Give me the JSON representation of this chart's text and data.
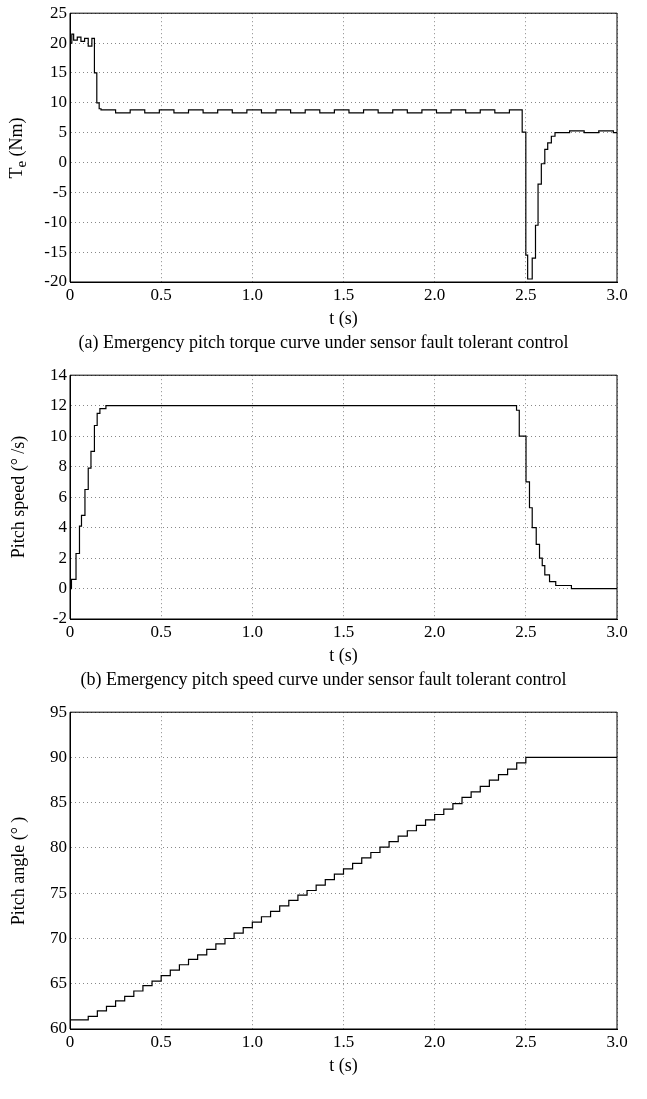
{
  "chart_data": [
    {
      "type": "step",
      "xlabel": "t (s)",
      "ylabel": "T$_{e}$ (Nm)",
      "annotations": [
        "(a)  Emergency pitch torque curve under sensor fault tolerant control"
      ],
      "x": [
        0,
        0.01,
        0.02,
        0.04,
        0.06,
        0.08,
        0.1,
        0.12,
        0.134,
        0.147,
        0.16,
        0.17,
        0.25,
        0.33,
        0.41,
        0.49,
        0.57,
        0.65,
        0.73,
        0.81,
        0.89,
        0.97,
        1.05,
        1.13,
        1.21,
        1.29,
        1.37,
        1.45,
        1.53,
        1.61,
        1.69,
        1.77,
        1.85,
        1.93,
        2.01,
        2.09,
        2.17,
        2.25,
        2.33,
        2.41,
        2.48,
        2.5,
        2.51,
        2.535,
        2.553,
        2.567,
        2.585,
        2.604,
        2.62,
        2.64,
        2.66,
        2.74,
        2.82,
        2.9,
        2.98,
        3.0
      ],
      "series": [
        {
          "color": "#000000",
          "values": [
            20,
            21.5,
            20.5,
            21,
            20.3,
            20.8,
            19.5,
            20.8,
            15,
            10,
            9,
            8.8,
            8.3,
            8.8,
            8.3,
            8.8,
            8.3,
            8.8,
            8.3,
            8.8,
            8.3,
            8.8,
            8.3,
            8.8,
            8.3,
            8.8,
            8.3,
            8.8,
            8.3,
            8.8,
            8.3,
            8.8,
            8.3,
            8.8,
            8.3,
            8.8,
            8.3,
            8.8,
            8.3,
            8.8,
            5.1,
            -15.5,
            -19.5,
            -16,
            -10.5,
            -3.6,
            -0.2,
            2.2,
            3.3,
            4.4,
            5,
            5.3,
            5,
            5.3,
            5,
            5
          ]
        }
      ],
      "xlim": [
        0,
        3
      ],
      "ylim": [
        -20,
        25
      ],
      "xticks": [
        0,
        0.5,
        {
          "value": 1,
          "label": "1.0"
        },
        1.5,
        {
          "value": 2,
          "label": "2.0"
        },
        2.5,
        {
          "value": 3,
          "label": "3.0"
        }
      ],
      "yticks": [
        -20,
        -15,
        -10,
        -5,
        0,
        5,
        10,
        15,
        20,
        25
      ],
      "grid": true,
      "legend": false,
      "marker": "none"
    },
    {
      "type": "step",
      "xlabel": "t (s)",
      "ylabel": "Pitch speed (° /s)",
      "annotations": [
        "(b)  Emergency pitch speed curve under sensor fault tolerant control"
      ],
      "x": [
        0,
        0.008,
        0.033,
        0.052,
        0.063,
        0.082,
        0.1,
        0.115,
        0.134,
        0.149,
        0.164,
        0.197,
        2.449,
        2.464,
        2.501,
        2.52,
        2.535,
        2.557,
        2.575,
        2.59,
        2.604,
        2.63,
        2.664,
        2.75,
        3.0
      ],
      "series": [
        {
          "color": "#000000",
          "values": [
            0,
            0.6,
            2.3,
            4.1,
            4.8,
            6.5,
            7.9,
            9.0,
            10.7,
            11.5,
            11.8,
            12,
            11.7,
            10,
            7,
            5.3,
            4,
            2.9,
            2,
            1.5,
            0.9,
            0.45,
            0.2,
            0,
            0
          ]
        }
      ],
      "xlim": [
        0,
        3
      ],
      "ylim": [
        -2,
        14
      ],
      "xticks": [
        0,
        0.5,
        {
          "value": 1,
          "label": "1.0"
        },
        1.5,
        {
          "value": 2,
          "label": "2.0"
        },
        2.5,
        {
          "value": 3,
          "label": "3.0"
        }
      ],
      "yticks": [
        -2,
        0,
        2,
        4,
        6,
        8,
        10,
        12,
        14
      ],
      "grid": true,
      "legend": false,
      "marker": "none"
    },
    {
      "type": "step",
      "xlabel": "t (s)",
      "ylabel": "Pitch angle (° )",
      "x": [
        0,
        0.1,
        0.15,
        0.2,
        0.25,
        0.3,
        0.35,
        0.4,
        0.45,
        0.5,
        0.55,
        0.6,
        0.65,
        0.7,
        0.75,
        0.8,
        0.85,
        0.9,
        0.95,
        1.0,
        1.05,
        1.1,
        1.15,
        1.2,
        1.25,
        1.3,
        1.35,
        1.4,
        1.45,
        1.5,
        1.55,
        1.6,
        1.65,
        1.7,
        1.75,
        1.8,
        1.85,
        1.9,
        1.95,
        2.0,
        2.05,
        2.1,
        2.15,
        2.2,
        2.25,
        2.3,
        2.35,
        2.4,
        2.45,
        2.5,
        3.0
      ],
      "series": [
        {
          "color": "#000000",
          "values": [
            61.0,
            61.4,
            62.0,
            62.5,
            63.1,
            63.6,
            64.2,
            64.8,
            65.3,
            65.9,
            66.5,
            67.1,
            67.7,
            68.2,
            68.8,
            69.4,
            70.0,
            70.6,
            71.2,
            71.8,
            72.4,
            73.0,
            73.6,
            74.2,
            74.8,
            75.3,
            75.9,
            76.5,
            77.1,
            77.7,
            78.3,
            78.9,
            79.5,
            80.1,
            80.7,
            81.3,
            81.9,
            82.5,
            83.1,
            83.7,
            84.3,
            84.9,
            85.6,
            86.2,
            86.8,
            87.5,
            88.1,
            88.7,
            89.4,
            90.0,
            90.0
          ]
        }
      ],
      "xlim": [
        0,
        3
      ],
      "ylim": [
        60,
        95
      ],
      "xticks": [
        0,
        0.5,
        {
          "value": 1,
          "label": "1.0"
        },
        1.5,
        {
          "value": 2,
          "label": "2.0"
        },
        2.5,
        {
          "value": 3,
          "label": "3.0"
        }
      ],
      "yticks": [
        60,
        65,
        70,
        75,
        80,
        85,
        90,
        95
      ],
      "grid": true,
      "legend": false,
      "marker": "none"
    }
  ]
}
